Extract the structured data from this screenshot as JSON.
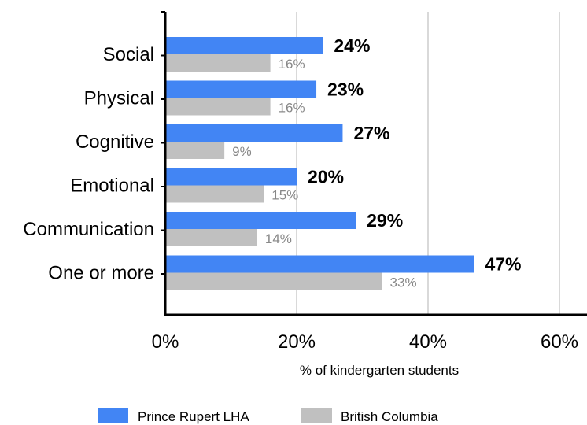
{
  "chart_data": {
    "type": "bar",
    "orientation": "horizontal",
    "categories": [
      "Social",
      "Physical",
      "Cognitive",
      "Emotional",
      "Communication",
      "One or more"
    ],
    "series": [
      {
        "name": "Prince Rupert LHA",
        "values": [
          24,
          23,
          27,
          20,
          29,
          47
        ],
        "labels": [
          "24%",
          "23%",
          "27%",
          "20%",
          "29%",
          "47%"
        ],
        "color": "#4285f4"
      },
      {
        "name": "British Columbia",
        "values": [
          16,
          16,
          9,
          15,
          14,
          33
        ],
        "labels": [
          "16%",
          "16%",
          "9%",
          "15%",
          "14%",
          "33%"
        ],
        "color": "#c0c0c0"
      }
    ],
    "xlabel": "% of kindergarten students",
    "xlim": [
      0,
      64
    ],
    "xticks": [
      0,
      20,
      40,
      60
    ],
    "xtick_labels": [
      "0%",
      "20%",
      "40%",
      "60%"
    ],
    "grid": true,
    "legend_position": "bottom",
    "label_color_secondary": "#888888",
    "grid_color": "#d9d9d9"
  }
}
